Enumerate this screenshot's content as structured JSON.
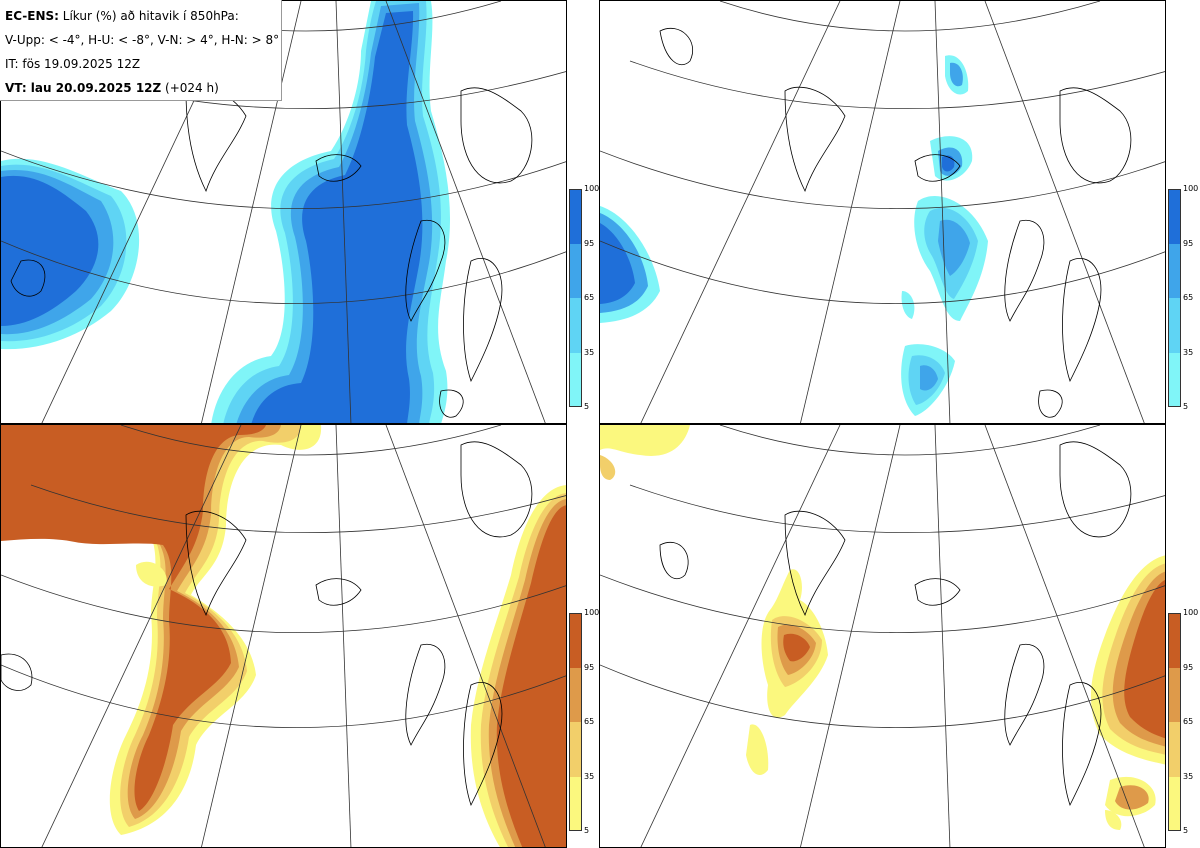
{
  "header": {
    "model_bold": "EC-ENS:",
    "title_rest": "Líkur (%) að hitavik í 850hPa:",
    "categories_line": "V-Upp: < -4°, H-U: < -8°, V-N: > 4°, H-N: > 8°",
    "init_time": "IT: fös 19.09.2025 12Z",
    "valid_label": "VT: lau 20.09.2025 12Z",
    "lead_time": "(+024 h)"
  },
  "colorbar_ticks": [
    "100",
    "95",
    "65",
    "35",
    "5"
  ],
  "colors": {
    "blue_scale": [
      "#80f5f8",
      "#5fd4f4",
      "#3fa5ea",
      "#1f6fd9"
    ],
    "orange_scale": [
      "#fbf87e",
      "#f2cf6a",
      "#de9a4a",
      "#c85d23"
    ],
    "coastline": "#000000",
    "graticule": "#333333"
  },
  "panels": [
    {
      "id": "top-left",
      "scale": "blue"
    },
    {
      "id": "top-right",
      "scale": "blue"
    },
    {
      "id": "bottom-left",
      "scale": "orange"
    },
    {
      "id": "bottom-right",
      "scale": "orange"
    }
  ]
}
